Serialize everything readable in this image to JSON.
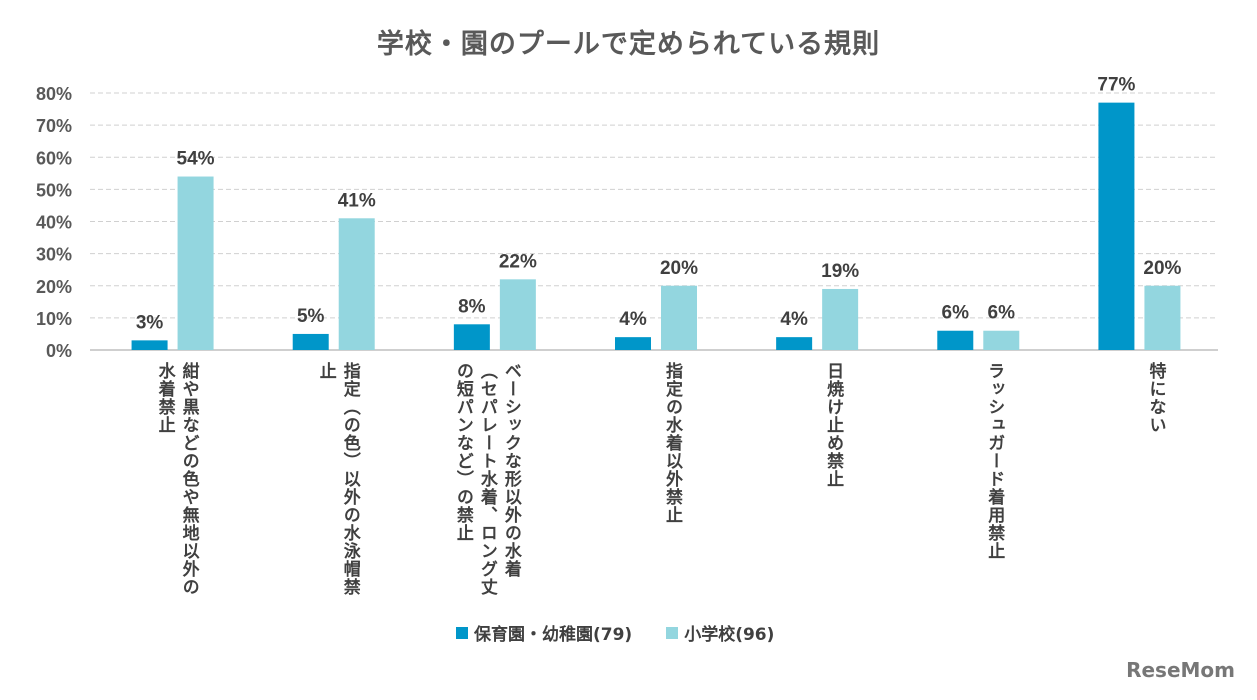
{
  "chart_data": {
    "type": "bar",
    "title": "学校・園のプールで定められている規則",
    "categories": [
      "紺や黒などの色や無地以外の水着禁止",
      "指定（の色）以外の水泳帽禁止",
      "ベーシックな形以外の水着（セパレート水着、ロング丈の短パンなど）の禁止",
      "指定の水着以外禁止",
      "日焼け止め禁止",
      "ラッシュガード着用禁止",
      "特にない"
    ],
    "series": [
      {
        "name": "保育園・幼稚園(79)",
        "color": "#0096c9",
        "values": [
          3,
          5,
          8,
          4,
          4,
          6,
          77
        ]
      },
      {
        "name": "小学校(96)",
        "color": "#93d6df",
        "values": [
          54,
          41,
          22,
          20,
          19,
          6,
          20
        ]
      }
    ],
    "unit": "%",
    "ylim": [
      0,
      80
    ],
    "yticks": [
      "0%",
      "10%",
      "20%",
      "30%",
      "40%",
      "50%",
      "60%",
      "70%",
      "80%"
    ],
    "grid": true,
    "legend_position": "bottom"
  },
  "logo": "ReseMom"
}
